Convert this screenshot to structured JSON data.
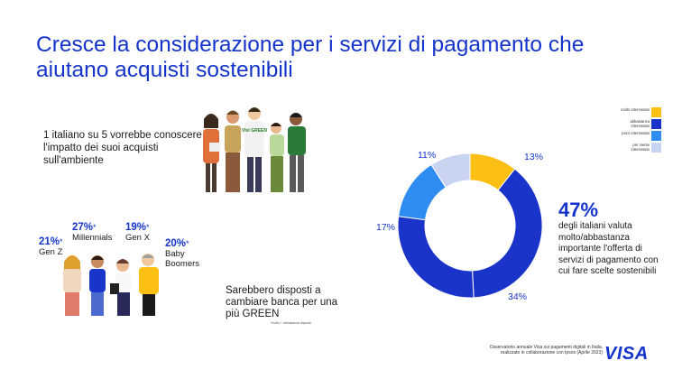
{
  "title": "Cresce la considerazione per i servizi di pagamento che aiutano acquisti sostenibili",
  "stat_1in5": "1 italiano su 5 vorrebbe  conoscere l'impatto dei suoi acquisti sull'ambiente",
  "shirt_text": "Vivi GREEN",
  "generations": [
    {
      "pct": "21%",
      "star": "*",
      "label": "Gen Z"
    },
    {
      "pct": "27%",
      "star": "*",
      "label": "Millennials"
    },
    {
      "pct": "19%",
      "star": "*",
      "label": "Gen X"
    },
    {
      "pct": "20%",
      "star": "*",
      "label": "Baby Boomers"
    }
  ],
  "bank_text": "Sarebbero disposti a cambiare banca per una più GREEN",
  "footnote": "*molto + abbastanza disposti",
  "legend": [
    {
      "label": "molto interessato",
      "color": "#fcc015"
    },
    {
      "label": "abbastanza interessato",
      "color": "#1a33c9"
    },
    {
      "label": "poco interessato",
      "color": "#2f8cf0"
    },
    {
      "label": "per niente interessato",
      "color": "#c9d3f2"
    }
  ],
  "donut": [
    {
      "label": "13%",
      "value": 13,
      "color": "#fcc015"
    },
    {
      "label": "47%",
      "value": 47,
      "color": "#1a33c9"
    },
    {
      "label": "34%",
      "value": 34,
      "color": "#1a33c9"
    },
    {
      "label": "17%",
      "value": 17,
      "color": "#2f8cf0"
    },
    {
      "label": "11%",
      "value": 11,
      "color": "#c9d3f2"
    }
  ],
  "big_pct": "47%",
  "big_text": "degli italiani valuta molto/abbastanza importante l'offerta di servizi di pagamento con cui fare scelte sostenibili",
  "source": "Osservatorio annuale Visa sui pagamenti digitali in Italia, realizzato in collaborazione con Ipsos (Aprile 2023)",
  "brand": "VISA"
}
